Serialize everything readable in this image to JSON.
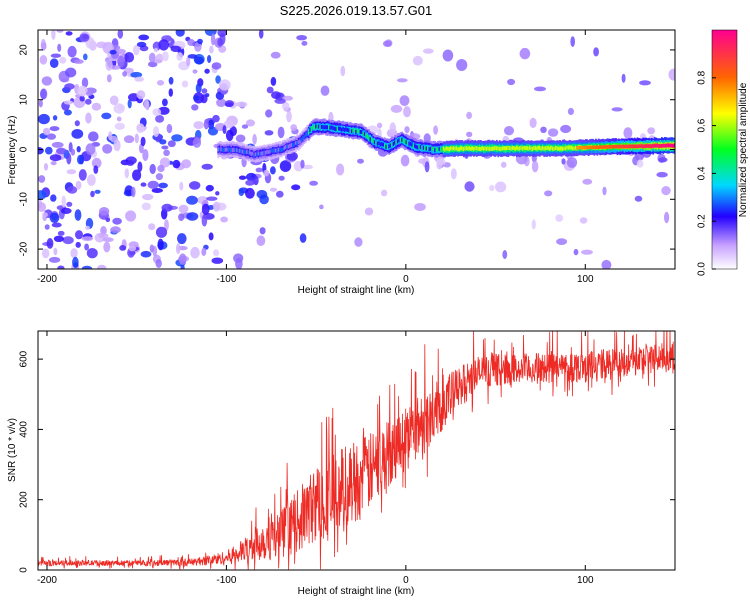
{
  "title": "S225.2026.019.13.57.G01",
  "colors": {
    "snr_line": "#ee2a24",
    "background": "#ffffff",
    "axis": "#000000"
  },
  "chart_data": [
    {
      "type": "heatmap",
      "xlabel": "Height of straight line (km)",
      "ylabel": "Frequency (Hz)",
      "xlim": [
        -205,
        150
      ],
      "ylim": [
        -24,
        24
      ],
      "xticks": [
        -200,
        -100,
        0,
        100
      ],
      "yticks": [
        -20,
        -10,
        0,
        10,
        20
      ],
      "colorbar": {
        "label": "Normalized spectral amplitude",
        "range": [
          0,
          1
        ],
        "ticks": [
          "0.0",
          "0.2",
          "0.4",
          "0.6",
          "0.8"
        ],
        "tick_values": [
          0,
          0.2,
          0.4,
          0.6,
          0.8
        ]
      },
      "ridge": [
        {
          "x": -105,
          "f": 0.0
        },
        {
          "x": -95,
          "f": 0.0
        },
        {
          "x": -85,
          "f": -1.0
        },
        {
          "x": -70,
          "f": 0.0
        },
        {
          "x": -60,
          "f": 1.5
        },
        {
          "x": -52,
          "f": 4.5
        },
        {
          "x": -45,
          "f": 4.5
        },
        {
          "x": -35,
          "f": 4.0
        },
        {
          "x": -25,
          "f": 3.5
        },
        {
          "x": -18,
          "f": 1.5
        },
        {
          "x": -10,
          "f": 0.5
        },
        {
          "x": -3,
          "f": 2.0
        },
        {
          "x": 5,
          "f": 0.5
        },
        {
          "x": 15,
          "f": 0.0
        },
        {
          "x": 30,
          "f": 0.2
        },
        {
          "x": 60,
          "f": 0.2
        },
        {
          "x": 90,
          "f": 0.3
        },
        {
          "x": 120,
          "f": 0.6
        },
        {
          "x": 150,
          "f": 0.8
        }
      ]
    },
    {
      "type": "line",
      "xlabel": "Height of straight line (km)",
      "ylabel": "SNR (10 * v/v)",
      "xlim": [
        -205,
        150
      ],
      "ylim": [
        0,
        680
      ],
      "xticks": [
        -200,
        -100,
        0,
        100
      ],
      "yticks": [
        0,
        200,
        400,
        600
      ],
      "series": [
        {
          "name": "SNR",
          "x": [
            -205,
            -180,
            -150,
            -120,
            -110,
            -100,
            -90,
            -80,
            -70,
            -60,
            -50,
            -40,
            -30,
            -20,
            -10,
            0,
            10,
            20,
            30,
            40,
            50,
            60,
            80,
            100,
            120,
            150
          ],
          "mean": [
            20,
            20,
            20,
            22,
            28,
            35,
            55,
            85,
            100,
            140,
            190,
            210,
            250,
            280,
            330,
            390,
            420,
            470,
            520,
            560,
            570,
            570,
            575,
            580,
            590,
            610
          ],
          "spread": [
            8,
            8,
            8,
            10,
            15,
            20,
            35,
            60,
            70,
            90,
            110,
            130,
            120,
            110,
            100,
            80,
            90,
            80,
            60,
            50,
            45,
            45,
            45,
            45,
            45,
            40
          ]
        }
      ]
    }
  ]
}
